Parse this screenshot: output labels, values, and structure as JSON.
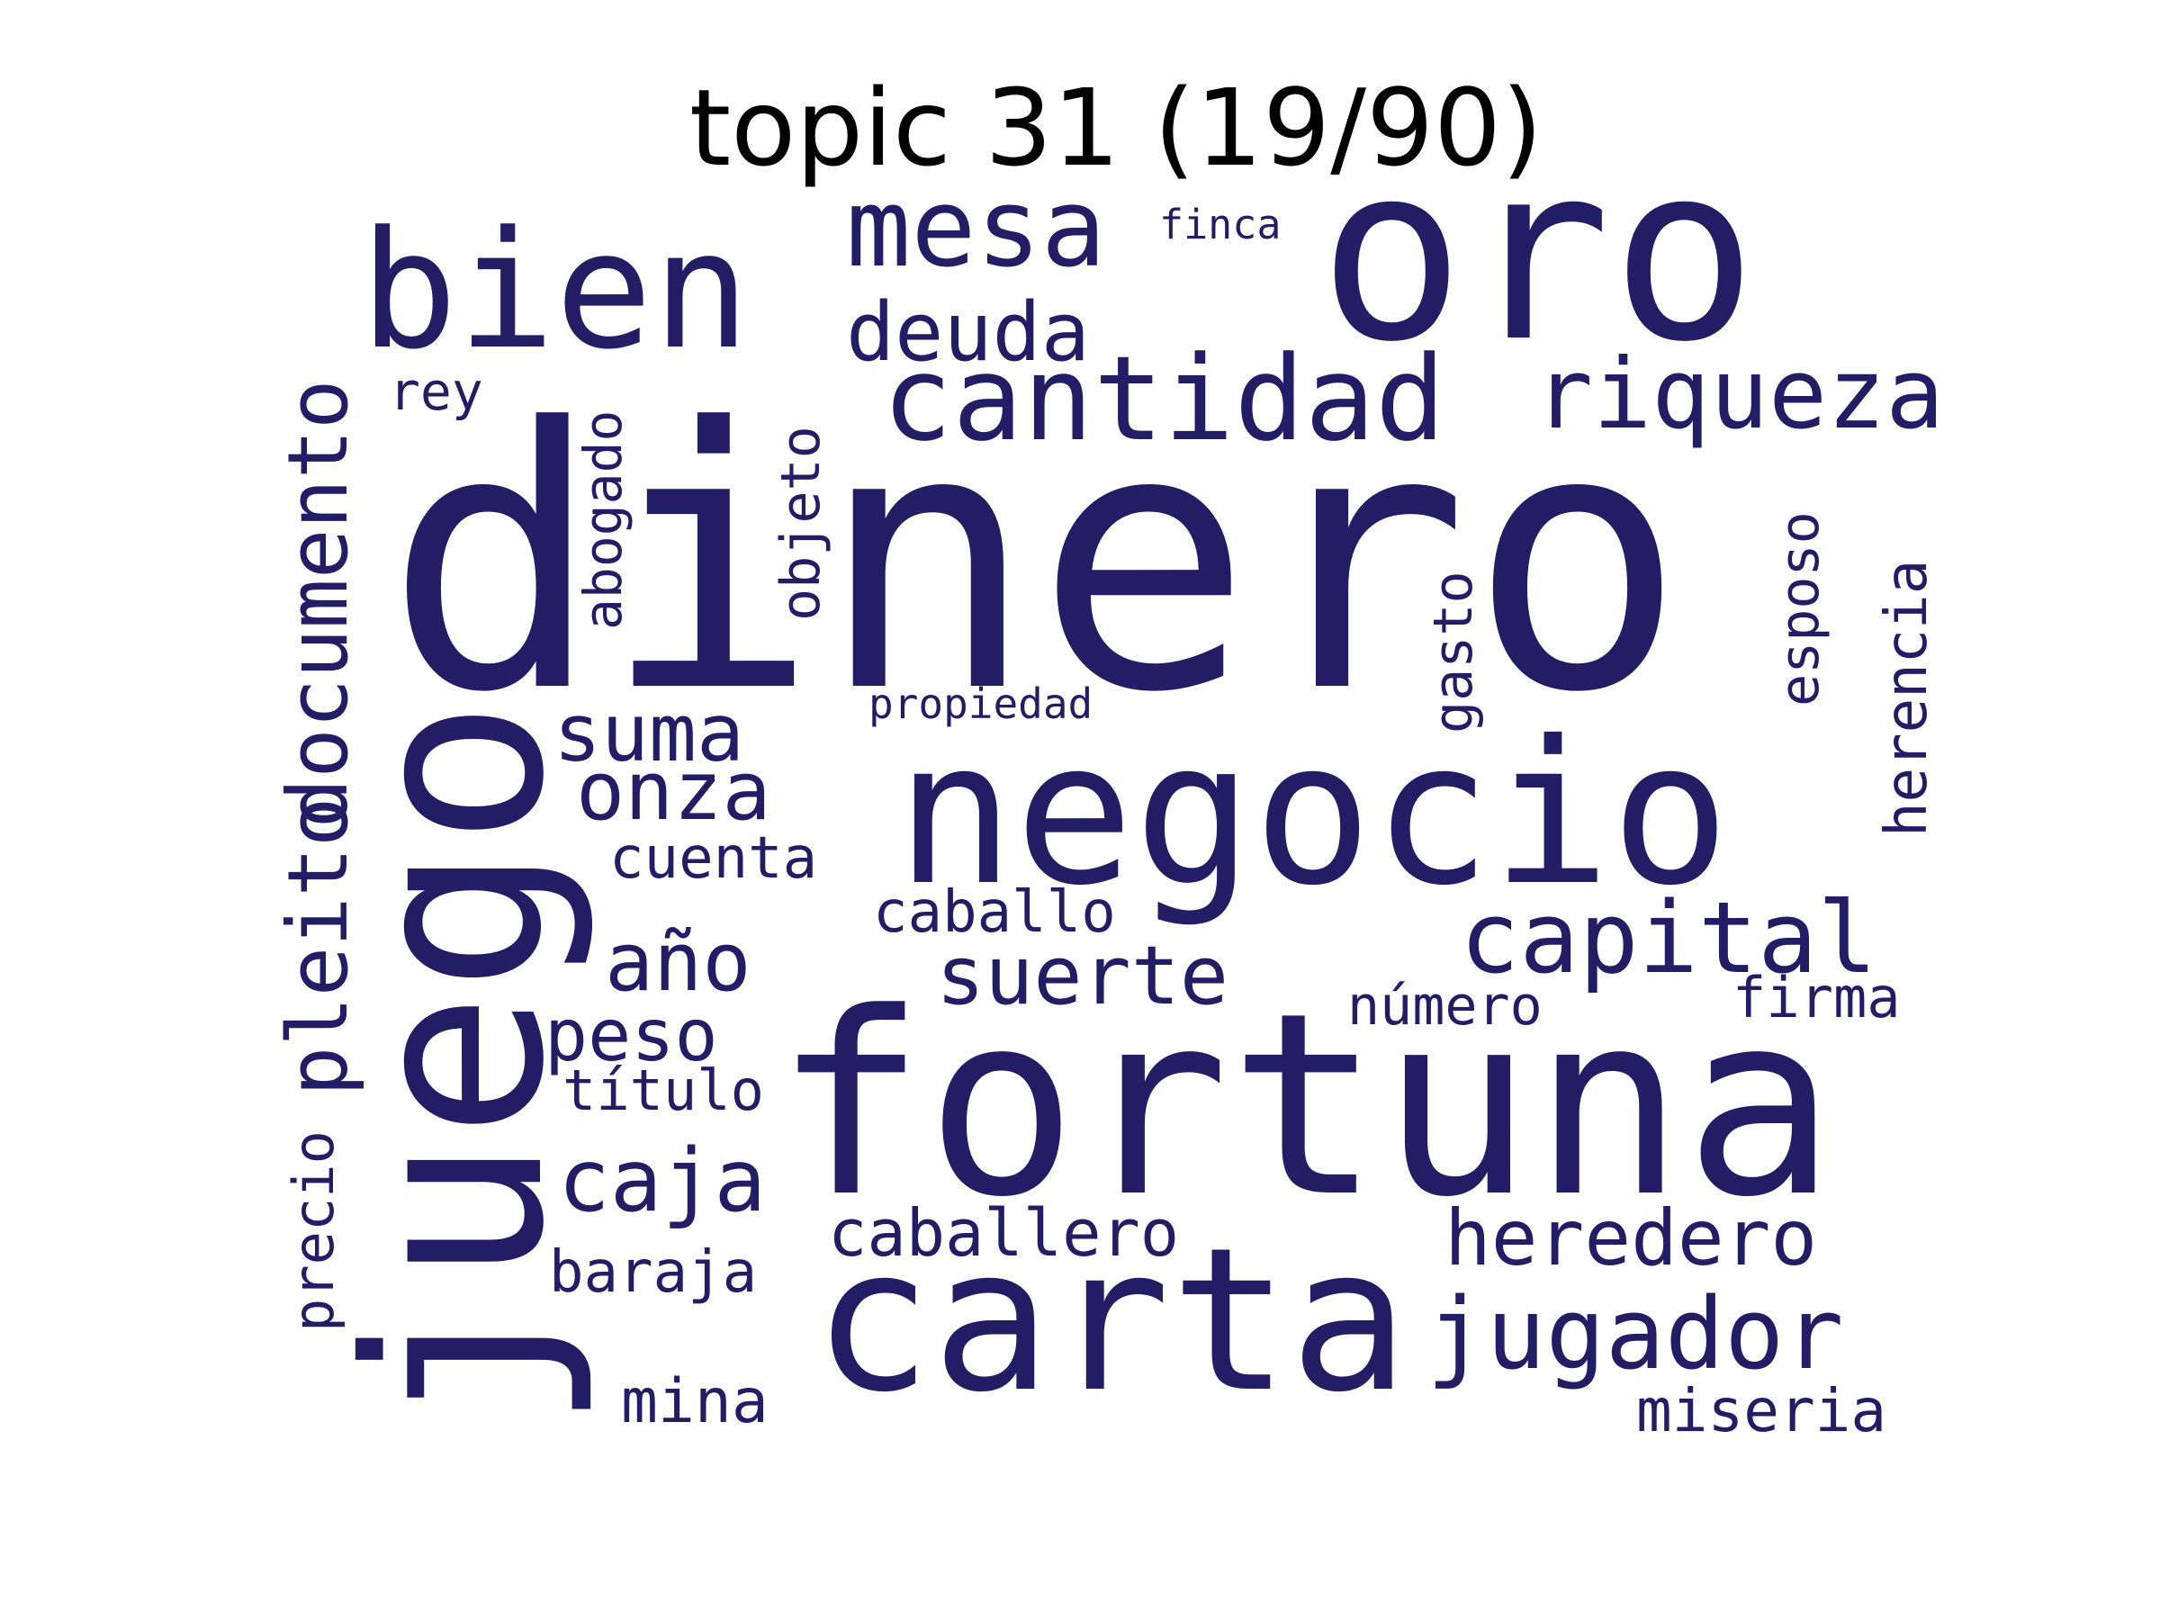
{
  "title": "topic 31 (19/90)",
  "word_color": "#231d66",
  "background": "#ffffff",
  "words": [
    {
      "text": "dinero"
    },
    {
      "text": "fortuna"
    },
    {
      "text": "negocio"
    },
    {
      "text": "juego"
    },
    {
      "text": "oro"
    },
    {
      "text": "carta"
    },
    {
      "text": "bien"
    },
    {
      "text": "cantidad"
    },
    {
      "text": "mesa"
    },
    {
      "text": "documento"
    },
    {
      "text": "riqueza"
    },
    {
      "text": "capital"
    },
    {
      "text": "jugador"
    },
    {
      "text": "pleito"
    },
    {
      "text": "suerte"
    },
    {
      "text": "deuda"
    },
    {
      "text": "heredero"
    },
    {
      "text": "caja"
    },
    {
      "text": "onza"
    },
    {
      "text": "suma"
    },
    {
      "text": "año"
    },
    {
      "text": "peso"
    },
    {
      "text": "caballero"
    },
    {
      "text": "herencia"
    },
    {
      "text": "precio"
    },
    {
      "text": "cuenta"
    },
    {
      "text": "objeto"
    },
    {
      "text": "abogado"
    },
    {
      "text": "esposo"
    },
    {
      "text": "gasto"
    },
    {
      "text": "caballo"
    },
    {
      "text": "baraja"
    },
    {
      "text": "número"
    },
    {
      "text": "firma"
    },
    {
      "text": "miseria"
    },
    {
      "text": "mina"
    },
    {
      "text": "título"
    },
    {
      "text": "rey"
    },
    {
      "text": "finca"
    },
    {
      "text": "propiedad"
    }
  ]
}
